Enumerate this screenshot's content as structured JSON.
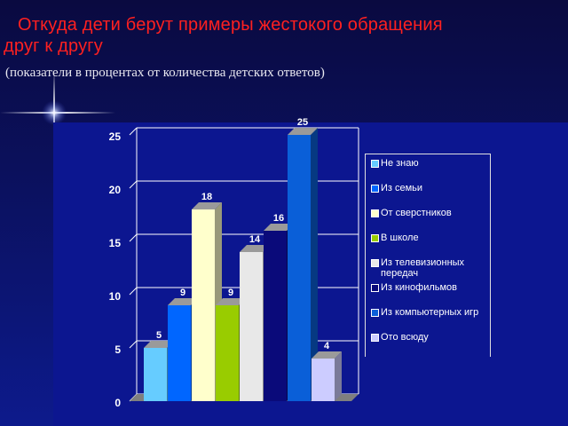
{
  "slide": {
    "title_line1": "Откуда дети берут примеры жестокого обращения",
    "title_line2": "друг к другу",
    "subtitle": "(показатели в процентах от количества детских ответов)"
  },
  "chart_data": {
    "type": "bar",
    "style": "3d",
    "title": "",
    "xlabel": "",
    "ylabel": "",
    "ylim": [
      0,
      25
    ],
    "yticks": [
      0,
      5,
      10,
      15,
      20,
      25
    ],
    "grid": true,
    "legend_position": "right",
    "series": [
      {
        "name": "Не знаю",
        "value": 5,
        "color": "#66ccff"
      },
      {
        "name": "Из семьи",
        "value": 9,
        "color": "#0066ff"
      },
      {
        "name": "От сверстников",
        "value": 18,
        "color": "#ffffcc"
      },
      {
        "name": "В школе",
        "value": 9,
        "color": "#99cc00"
      },
      {
        "name": "Из телевизионных передач",
        "value": 14,
        "color": "#e8e8e8"
      },
      {
        "name": "Из кинофильмов",
        "value": 16,
        "color": "#0a0a7a"
      },
      {
        "name": "Из компьютерных игр",
        "value": 25,
        "color": "#0a5fd8"
      },
      {
        "name": "Ото всюду",
        "value": 4,
        "color": "#ccccff"
      }
    ]
  },
  "legend": {
    "items": [
      {
        "label": "Не знаю",
        "color": "#66ccff"
      },
      {
        "label": "Из семьи",
        "color": "#0066ff"
      },
      {
        "label": "От сверстников",
        "color": "#ffffcc"
      },
      {
        "label": "В школе",
        "color": "#99cc00"
      },
      {
        "label": "Из телевизионных передач",
        "color": "#e8e8e8"
      },
      {
        "label": "Из кинофильмов",
        "color": "#0a0a7a"
      },
      {
        "label": "Из компьютерных игр",
        "color": "#0a5fd8"
      },
      {
        "label": "Ото всюду",
        "color": "#ccccff"
      }
    ]
  }
}
